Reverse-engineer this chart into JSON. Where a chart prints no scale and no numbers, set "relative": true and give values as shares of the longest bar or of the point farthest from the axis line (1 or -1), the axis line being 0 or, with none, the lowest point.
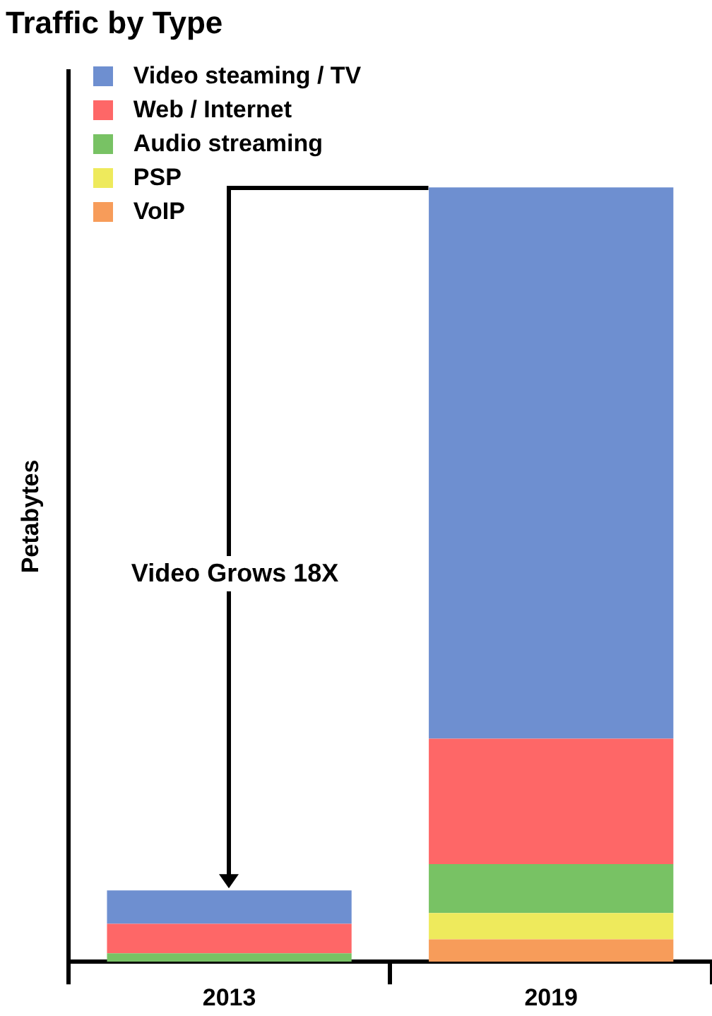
{
  "chart_data": {
    "type": "bar",
    "title": "Traffic by Type",
    "ylabel": "Petabytes",
    "relative": true,
    "stacked": true,
    "legend": "top left",
    "categories": [
      "2013",
      "2019"
    ],
    "series": [
      {
        "name": "VoIP",
        "color": "#f79c5a",
        "values": [
          0,
          0.029
        ]
      },
      {
        "name": "PSP",
        "color": "#eeea5c",
        "values": [
          0,
          0.034
        ]
      },
      {
        "name": "Audio streaming",
        "color": "#78c264",
        "values": [
          0.011,
          0.063
        ]
      },
      {
        "name": "Web / Internet",
        "color": "#fe6767",
        "values": [
          0.038,
          0.162
        ]
      },
      {
        "name": "Video steaming / TV",
        "color": "#6e8fd0",
        "values": [
          0.043,
          0.712
        ]
      }
    ],
    "annotations": [
      "Video Grows 18X"
    ]
  }
}
